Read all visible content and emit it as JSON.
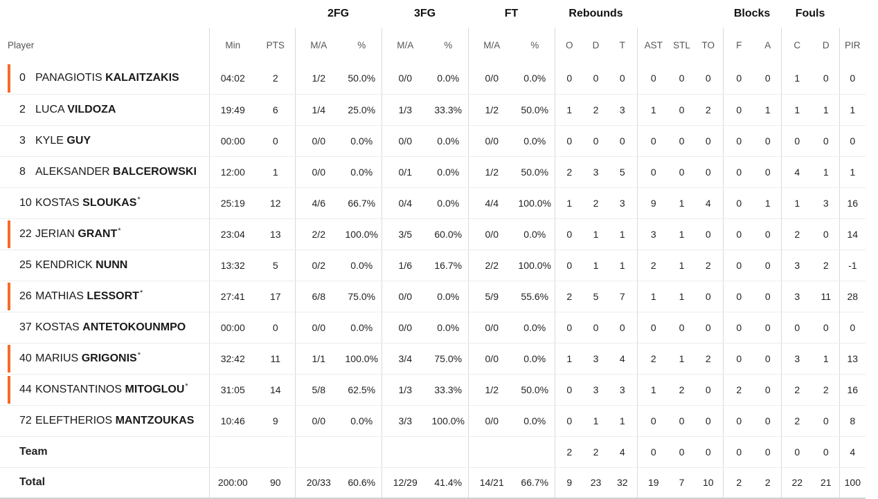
{
  "groups": {
    "fg2": "2FG",
    "fg3": "3FG",
    "ft": "FT",
    "reb": "Rebounds",
    "blk": "Blocks",
    "fouls": "Fouls"
  },
  "cols": {
    "player": "Player",
    "min": "Min",
    "pts": "PTS",
    "fg2_ma": "M/A",
    "fg2_pct": "%",
    "fg3_ma": "M/A",
    "fg3_pct": "%",
    "ft_ma": "M/A",
    "ft_pct": "%",
    "o": "O",
    "d": "D",
    "t": "T",
    "ast": "AST",
    "stl": "STL",
    "to": "TO",
    "bf": "F",
    "ba": "A",
    "fc": "C",
    "fd": "D",
    "pir": "PIR"
  },
  "players": [
    {
      "no": "0",
      "first": "PANAGIOTIS",
      "last": "KALAITZAKIS",
      "star": "",
      "marked": true,
      "stats": [
        "04:02",
        "2",
        "1/2",
        "50.0%",
        "0/0",
        "0.0%",
        "0/0",
        "0.0%",
        "0",
        "0",
        "0",
        "0",
        "0",
        "0",
        "0",
        "0",
        "1",
        "0",
        "0"
      ]
    },
    {
      "no": "2",
      "first": "LUCA",
      "last": "VILDOZA",
      "star": "",
      "marked": false,
      "stats": [
        "19:49",
        "6",
        "1/4",
        "25.0%",
        "1/3",
        "33.3%",
        "1/2",
        "50.0%",
        "1",
        "2",
        "3",
        "1",
        "0",
        "2",
        "0",
        "1",
        "1",
        "1",
        "1"
      ]
    },
    {
      "no": "3",
      "first": "KYLE",
      "last": "GUY",
      "star": "",
      "marked": false,
      "stats": [
        "00:00",
        "0",
        "0/0",
        "0.0%",
        "0/0",
        "0.0%",
        "0/0",
        "0.0%",
        "0",
        "0",
        "0",
        "0",
        "0",
        "0",
        "0",
        "0",
        "0",
        "0",
        "0"
      ]
    },
    {
      "no": "8",
      "first": "ALEKSANDER",
      "last": "BALCEROWSKI",
      "star": "",
      "marked": false,
      "stats": [
        "12:00",
        "1",
        "0/0",
        "0.0%",
        "0/1",
        "0.0%",
        "1/2",
        "50.0%",
        "2",
        "3",
        "5",
        "0",
        "0",
        "0",
        "0",
        "0",
        "4",
        "1",
        "1"
      ]
    },
    {
      "no": "10",
      "first": "KOSTAS",
      "last": "SLOUKAS",
      "star": "*",
      "marked": false,
      "stats": [
        "25:19",
        "12",
        "4/6",
        "66.7%",
        "0/4",
        "0.0%",
        "4/4",
        "100.0%",
        "1",
        "2",
        "3",
        "9",
        "1",
        "4",
        "0",
        "1",
        "1",
        "3",
        "16"
      ]
    },
    {
      "no": "22",
      "first": "JERIAN",
      "last": "GRANT",
      "star": "*",
      "marked": true,
      "stats": [
        "23:04",
        "13",
        "2/2",
        "100.0%",
        "3/5",
        "60.0%",
        "0/0",
        "0.0%",
        "0",
        "1",
        "1",
        "3",
        "1",
        "0",
        "0",
        "0",
        "2",
        "0",
        "14"
      ]
    },
    {
      "no": "25",
      "first": "KENDRICK",
      "last": "NUNN",
      "star": "",
      "marked": false,
      "stats": [
        "13:32",
        "5",
        "0/2",
        "0.0%",
        "1/6",
        "16.7%",
        "2/2",
        "100.0%",
        "0",
        "1",
        "1",
        "2",
        "1",
        "2",
        "0",
        "0",
        "3",
        "2",
        "-1"
      ]
    },
    {
      "no": "26",
      "first": "MATHIAS",
      "last": "LESSORT",
      "star": "*",
      "marked": true,
      "stats": [
        "27:41",
        "17",
        "6/8",
        "75.0%",
        "0/0",
        "0.0%",
        "5/9",
        "55.6%",
        "2",
        "5",
        "7",
        "1",
        "1",
        "0",
        "0",
        "0",
        "3",
        "11",
        "28"
      ]
    },
    {
      "no": "37",
      "first": "KOSTAS",
      "last": "ANTETOKOUNMPO",
      "star": "",
      "marked": false,
      "stats": [
        "00:00",
        "0",
        "0/0",
        "0.0%",
        "0/0",
        "0.0%",
        "0/0",
        "0.0%",
        "0",
        "0",
        "0",
        "0",
        "0",
        "0",
        "0",
        "0",
        "0",
        "0",
        "0"
      ]
    },
    {
      "no": "40",
      "first": "MARIUS",
      "last": "GRIGONIS",
      "star": "*",
      "marked": true,
      "stats": [
        "32:42",
        "11",
        "1/1",
        "100.0%",
        "3/4",
        "75.0%",
        "0/0",
        "0.0%",
        "1",
        "3",
        "4",
        "2",
        "1",
        "2",
        "0",
        "0",
        "3",
        "1",
        "13"
      ]
    },
    {
      "no": "44",
      "first": "KONSTANTINOS",
      "last": "MITOGLOU",
      "star": "*",
      "marked": true,
      "stats": [
        "31:05",
        "14",
        "5/8",
        "62.5%",
        "1/3",
        "33.3%",
        "1/2",
        "50.0%",
        "0",
        "3",
        "3",
        "1",
        "2",
        "0",
        "2",
        "0",
        "2",
        "2",
        "16"
      ]
    },
    {
      "no": "72",
      "first": "ELEFTHERIOS",
      "last": "MANTZOUKAS",
      "star": "",
      "marked": false,
      "stats": [
        "10:46",
        "9",
        "0/0",
        "0.0%",
        "3/3",
        "100.0%",
        "0/0",
        "0.0%",
        "0",
        "1",
        "1",
        "0",
        "0",
        "0",
        "0",
        "0",
        "2",
        "0",
        "8"
      ]
    }
  ],
  "team": {
    "label": "Team",
    "stats": [
      "",
      "",
      "",
      "",
      "",
      "",
      "",
      "",
      "2",
      "2",
      "4",
      "0",
      "0",
      "0",
      "0",
      "0",
      "0",
      "0",
      "4"
    ]
  },
  "total": {
    "label": "Total",
    "stats": [
      "200:00",
      "90",
      "20/33",
      "60.6%",
      "12/29",
      "41.4%",
      "14/21",
      "66.7%",
      "9",
      "23",
      "32",
      "19",
      "7",
      "10",
      "2",
      "2",
      "22",
      "21",
      "100"
    ]
  },
  "accent": "#f36b2a"
}
